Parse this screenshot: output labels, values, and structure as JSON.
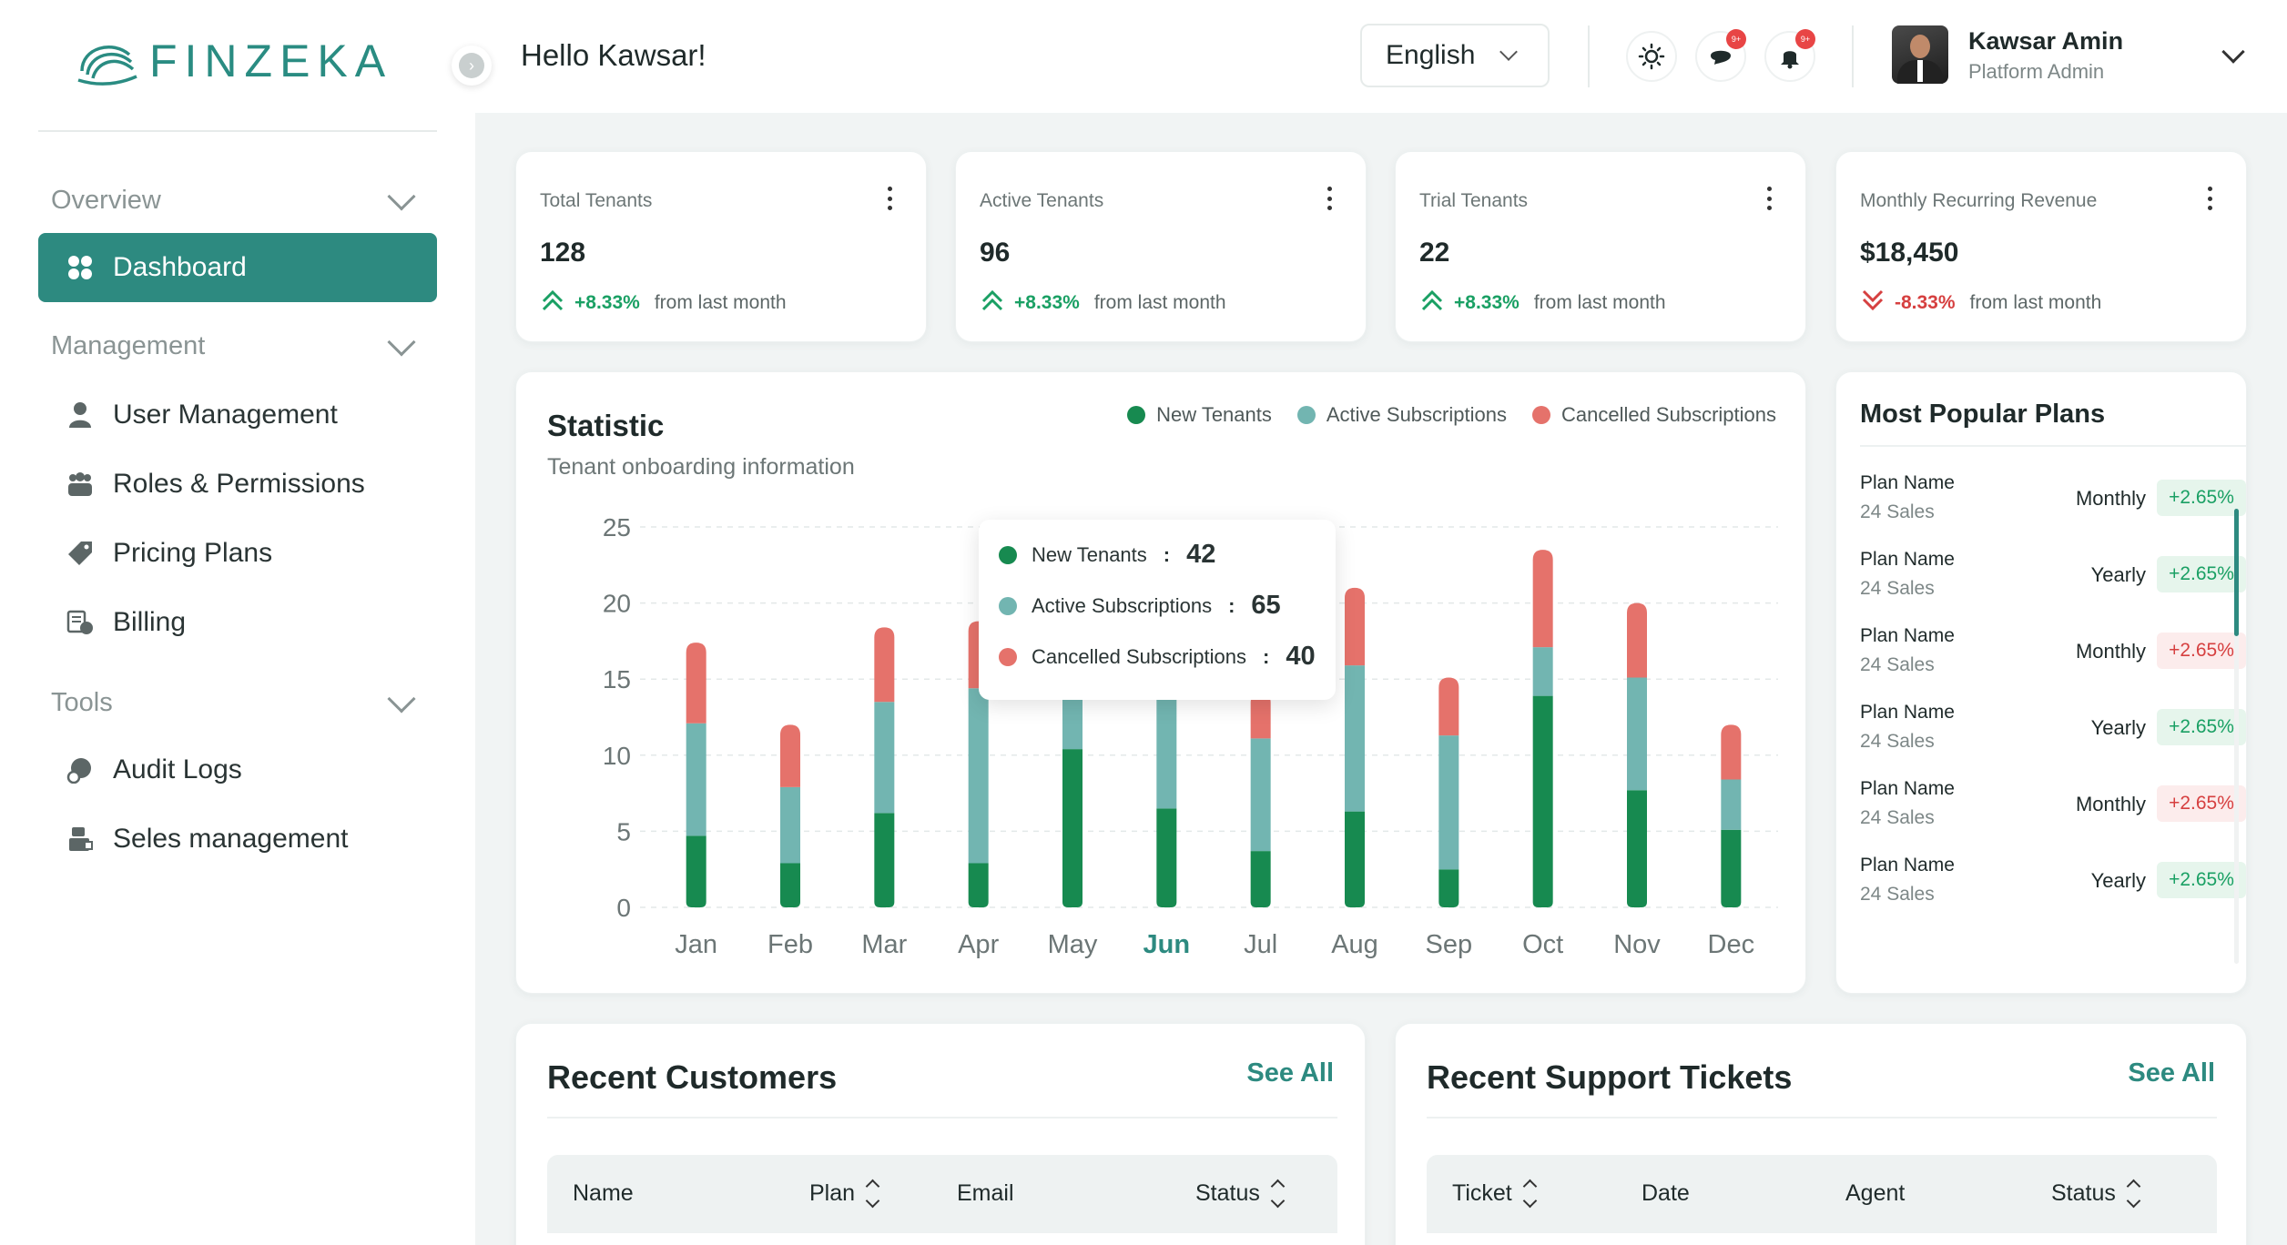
{
  "brand": {
    "name": "FINZEKA"
  },
  "header": {
    "greeting": "Hello Kawsar!",
    "language": "English",
    "notif_badge": "9+",
    "message_badge": "9+",
    "user_name": "Kawsar Amin",
    "user_role": "Platform Admin"
  },
  "sidebar": {
    "sections": [
      {
        "label": "Overview"
      },
      {
        "label": "Management"
      },
      {
        "label": "Tools"
      }
    ],
    "items": [
      {
        "label": "Dashboard",
        "icon": "dashboard-icon"
      },
      {
        "label": "User Management",
        "icon": "user-icon"
      },
      {
        "label": "Roles & Permissions",
        "icon": "group-icon"
      },
      {
        "label": "Pricing Plans",
        "icon": "tag-icon"
      },
      {
        "label": "Billing",
        "icon": "billing-icon"
      },
      {
        "label": "Audit Logs",
        "icon": "audit-icon"
      },
      {
        "label": "Seles management",
        "icon": "sales-icon"
      }
    ]
  },
  "stats": [
    {
      "label": "Total Tenants",
      "value": "128",
      "pct": "+8.33%",
      "from": "from last month",
      "dir": "up"
    },
    {
      "label": "Active Tenants",
      "value": "96",
      "pct": "+8.33%",
      "from": "from last month",
      "dir": "up"
    },
    {
      "label": "Trial Tenants",
      "value": "22",
      "pct": "+8.33%",
      "from": "from last month",
      "dir": "up"
    },
    {
      "label": "Monthly Recurring Revenue",
      "value": "$18,450",
      "pct": "-8.33%",
      "from": "from last month",
      "dir": "down"
    }
  ],
  "statistic": {
    "title": "Statistic",
    "subtitle": "Tenant onboarding information",
    "tooltip": [
      {
        "label": "New Tenants",
        "value": "42"
      },
      {
        "label": "Active Subscriptions",
        "value": "65"
      },
      {
        "label": "Cancelled Subscriptions",
        "value": "40"
      }
    ]
  },
  "chart_data": {
    "type": "bar",
    "stacked": true,
    "categories": [
      "Jan",
      "Feb",
      "Mar",
      "Apr",
      "May",
      "Jun",
      "Jul",
      "Aug",
      "Sep",
      "Oct",
      "Nov",
      "Dec"
    ],
    "highlighted_category": "Jun",
    "series": [
      {
        "name": "New Tenants",
        "color": "#178a50",
        "values": [
          4.7,
          2.9,
          6.2,
          2.9,
          10.4,
          6.5,
          3.7,
          6.3,
          2.5,
          13.9,
          7.7,
          5.1
        ]
      },
      {
        "name": "Active Subscriptions",
        "color": "#72b5b1",
        "values": [
          7.4,
          5.0,
          7.3,
          11.5,
          4.0,
          7.3,
          7.4,
          9.6,
          8.8,
          3.2,
          7.4,
          3.3
        ]
      },
      {
        "name": "Cancelled Subscriptions",
        "color": "#e5726b",
        "values": [
          5.3,
          4.1,
          4.9,
          4.4,
          3.0,
          2.8,
          3.0,
          5.1,
          3.8,
          6.4,
          4.9,
          3.6
        ]
      }
    ],
    "ylim": [
      0,
      25
    ],
    "yticks": [
      "0",
      "5",
      "10",
      "15",
      "20",
      "25"
    ],
    "grid": true,
    "legend": "top-right"
  },
  "popular_plans": {
    "title": "Most Popular Plans",
    "rows": [
      {
        "name": "Plan Name",
        "sales": "24 Sales",
        "cycle": "Monthly",
        "pct": "+2.65%",
        "dir": "up"
      },
      {
        "name": "Plan Name",
        "sales": "24 Sales",
        "cycle": "Yearly",
        "pct": "+2.65%",
        "dir": "up"
      },
      {
        "name": "Plan Name",
        "sales": "24 Sales",
        "cycle": "Monthly",
        "pct": "+2.65%",
        "dir": "down"
      },
      {
        "name": "Plan Name",
        "sales": "24 Sales",
        "cycle": "Yearly",
        "pct": "+2.65%",
        "dir": "up"
      },
      {
        "name": "Plan Name",
        "sales": "24 Sales",
        "cycle": "Monthly",
        "pct": "+2.65%",
        "dir": "down"
      },
      {
        "name": "Plan Name",
        "sales": "24 Sales",
        "cycle": "Yearly",
        "pct": "+2.65%",
        "dir": "up"
      }
    ]
  },
  "recent_customers": {
    "title": "Recent Customers",
    "see_all": "See All",
    "columns": [
      "Name",
      "Plan",
      "Email",
      "Status"
    ]
  },
  "recent_tickets": {
    "title": "Recent Support Tickets",
    "see_all": "See All",
    "columns": [
      "Ticket",
      "Date",
      "Agent",
      "Status"
    ]
  },
  "colors": {
    "accent": "#2d8a80",
    "up": "#1aa064",
    "down": "#d64040"
  }
}
